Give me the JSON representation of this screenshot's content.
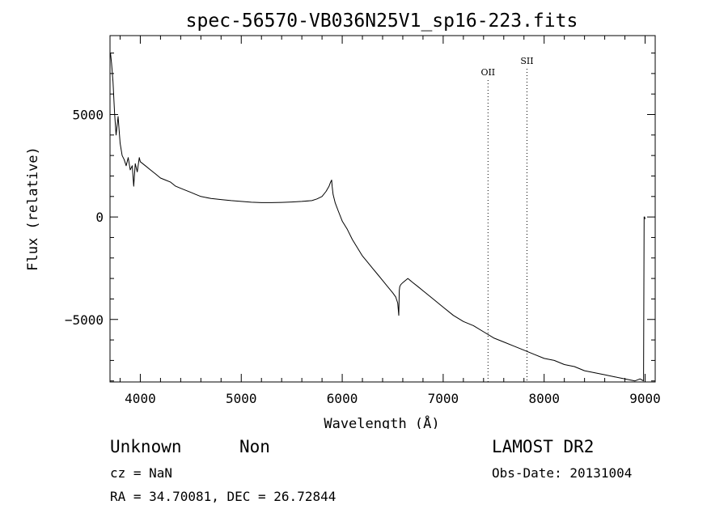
{
  "chart_data": {
    "type": "line",
    "title": "spec-56570-VB036N25V1_sp16-223.fits",
    "xlabel": "Wavelength (Å)",
    "ylabel": "Flux (relative)",
    "xlim": [
      3700,
      9100
    ],
    "ylim": [
      -8050,
      8850
    ],
    "xticks": [
      4000,
      5000,
      6000,
      7000,
      8000,
      9000
    ],
    "yticks": [
      5000,
      0,
      -5000
    ],
    "ytick_labels": [
      "5000",
      "0",
      "−5000"
    ],
    "grid": false,
    "series": [
      {
        "x": [
          3705,
          3715,
          3730,
          3745,
          3760,
          3780,
          3800,
          3820,
          3840,
          3860,
          3880,
          3900,
          3920,
          3935,
          3950,
          3970,
          3990,
          4000,
          4050,
          4100,
          4150,
          4200,
          4250,
          4300,
          4350,
          4400,
          4450,
          4500,
          4550,
          4600,
          4700,
          4800,
          4900,
          5000,
          5100,
          5200,
          5300,
          5400,
          5500,
          5600,
          5700,
          5750,
          5800,
          5840,
          5870,
          5885,
          5895,
          5900,
          5910,
          5930,
          5960,
          6000,
          6050,
          6100,
          6150,
          6200,
          6250,
          6300,
          6350,
          6400,
          6450,
          6500,
          6530,
          6550,
          6560,
          6565,
          6570,
          6580,
          6600,
          6650,
          6700,
          6750,
          6800,
          6900,
          7000,
          7100,
          7200,
          7300,
          7400,
          7500,
          7600,
          7700,
          7800,
          7900,
          8000,
          8100,
          8200,
          8300,
          8400,
          8500,
          8600,
          8700,
          8800,
          8900,
          8950,
          8985,
          8990,
          8995,
          9000
        ],
        "y": [
          8000,
          7500,
          6600,
          5100,
          4000,
          4900,
          3600,
          3000,
          2800,
          2500,
          2900,
          2300,
          2500,
          1500,
          2600,
          2200,
          2900,
          2700,
          2500,
          2300,
          2100,
          1900,
          1800,
          1700,
          1500,
          1400,
          1300,
          1200,
          1100,
          1000,
          900,
          850,
          800,
          760,
          720,
          700,
          700,
          710,
          730,
          760,
          800,
          880,
          1000,
          1250,
          1500,
          1700,
          1800,
          1500,
          1100,
          700,
          300,
          -200,
          -600,
          -1100,
          -1500,
          -1900,
          -2200,
          -2500,
          -2800,
          -3100,
          -3400,
          -3700,
          -3900,
          -4200,
          -4800,
          -3600,
          -3400,
          -3300,
          -3200,
          -3000,
          -3200,
          -3400,
          -3600,
          -4000,
          -4400,
          -4800,
          -5100,
          -5300,
          -5600,
          -5900,
          -6100,
          -6300,
          -6500,
          -6700,
          -6900,
          -7000,
          -7200,
          -7300,
          -7500,
          -7600,
          -7700,
          -7800,
          -7900,
          -8000,
          -7900,
          -8000,
          0,
          0,
          -100
        ]
      }
    ],
    "lines": [
      {
        "x": 7444,
        "label": "OII"
      },
      {
        "x": 7830,
        "label": "SII"
      }
    ]
  },
  "info": {
    "class": "Unknown",
    "subclass": "Non",
    "survey": "LAMOST DR2",
    "cz": "cz = NaN",
    "obs_date": "Obs-Date: 20131004",
    "radec": "RA =  34.70081, DEC =  26.72844"
  }
}
